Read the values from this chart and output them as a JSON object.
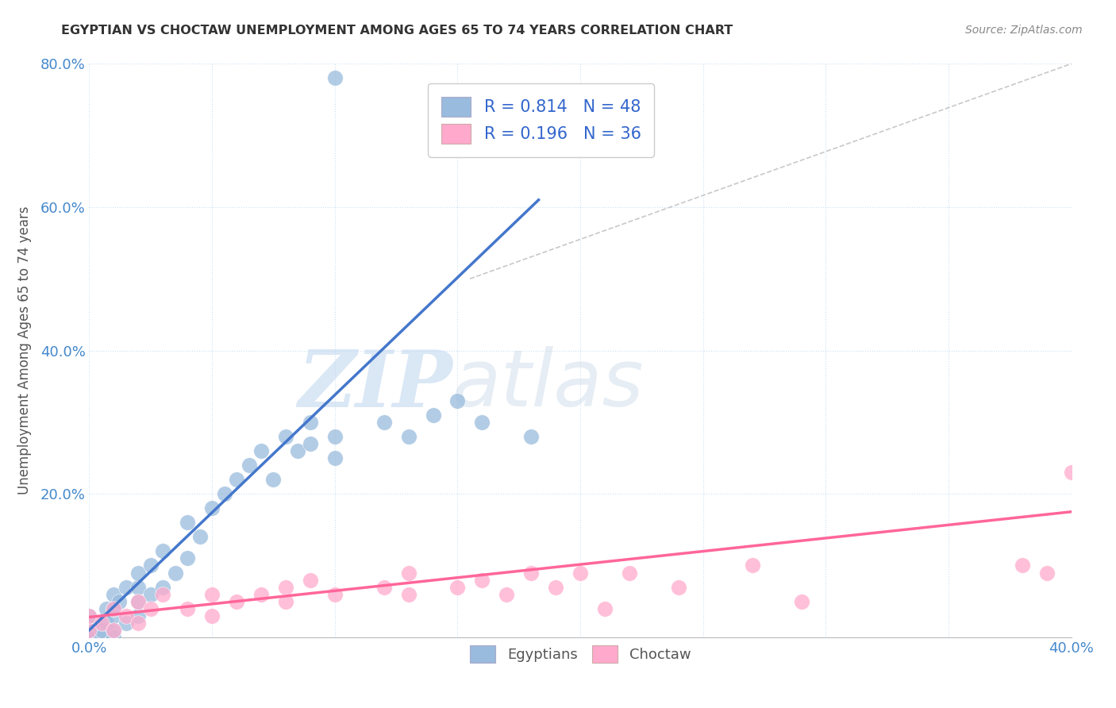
{
  "title": "EGYPTIAN VS CHOCTAW UNEMPLOYMENT AMONG AGES 65 TO 74 YEARS CORRELATION CHART",
  "source": "Source: ZipAtlas.com",
  "ylabel": "Unemployment Among Ages 65 to 74 years",
  "xlim": [
    0.0,
    0.4
  ],
  "ylim": [
    0.0,
    0.8
  ],
  "yticks": [
    0.0,
    0.2,
    0.4,
    0.6,
    0.8
  ],
  "ytick_labels": [
    "",
    "20.0%",
    "40.0%",
    "60.0%",
    "80.0%"
  ],
  "xtick_labels_show": [
    0.0,
    0.4
  ],
  "color_egyptian": "#99BBDD",
  "color_choctaw": "#FFAACC",
  "color_line_egyptian": "#4477CC",
  "color_line_choctaw": "#FF6699",
  "color_ref_line": "#BBBBBB",
  "watermark_zip": "ZIP",
  "watermark_atlas": "atlas",
  "background_color": "#FFFFFF",
  "eg_line_x0": 0.0,
  "eg_line_y0": 0.01,
  "eg_line_x1": 0.183,
  "eg_line_y1": 0.61,
  "ch_line_x0": 0.0,
  "ch_line_y0": 0.028,
  "ch_line_x1": 0.4,
  "ch_line_y1": 0.175,
  "ref_line_x0": 0.155,
  "ref_line_y0": 0.5,
  "ref_line_x1": 0.4,
  "ref_line_y1": 0.8,
  "egyptian_x": [
    0.0,
    0.0,
    0.0,
    0.0,
    0.0,
    0.005,
    0.005,
    0.007,
    0.007,
    0.01,
    0.01,
    0.01,
    0.01,
    0.01,
    0.012,
    0.015,
    0.015,
    0.02,
    0.02,
    0.02,
    0.02,
    0.025,
    0.025,
    0.03,
    0.03,
    0.035,
    0.04,
    0.04,
    0.045,
    0.05,
    0.055,
    0.06,
    0.065,
    0.07,
    0.075,
    0.08,
    0.085,
    0.09,
    0.09,
    0.1,
    0.1,
    0.12,
    0.13,
    0.14,
    0.15,
    0.16,
    0.18,
    0.1
  ],
  "egyptian_y": [
    0.0,
    0.005,
    0.01,
    0.02,
    0.03,
    0.0,
    0.01,
    0.02,
    0.04,
    0.0,
    0.01,
    0.03,
    0.04,
    0.06,
    0.05,
    0.02,
    0.07,
    0.03,
    0.05,
    0.07,
    0.09,
    0.06,
    0.1,
    0.07,
    0.12,
    0.09,
    0.11,
    0.16,
    0.14,
    0.18,
    0.2,
    0.22,
    0.24,
    0.26,
    0.22,
    0.28,
    0.26,
    0.27,
    0.3,
    0.25,
    0.28,
    0.3,
    0.28,
    0.31,
    0.33,
    0.3,
    0.28,
    0.78
  ],
  "choctaw_x": [
    0.0,
    0.0,
    0.005,
    0.01,
    0.01,
    0.015,
    0.02,
    0.02,
    0.025,
    0.03,
    0.04,
    0.05,
    0.05,
    0.06,
    0.07,
    0.08,
    0.08,
    0.09,
    0.1,
    0.12,
    0.13,
    0.13,
    0.15,
    0.16,
    0.17,
    0.18,
    0.19,
    0.2,
    0.21,
    0.22,
    0.24,
    0.27,
    0.29,
    0.38,
    0.39,
    0.4
  ],
  "choctaw_y": [
    0.01,
    0.03,
    0.02,
    0.01,
    0.04,
    0.03,
    0.02,
    0.05,
    0.04,
    0.06,
    0.04,
    0.03,
    0.06,
    0.05,
    0.06,
    0.07,
    0.05,
    0.08,
    0.06,
    0.07,
    0.06,
    0.09,
    0.07,
    0.08,
    0.06,
    0.09,
    0.07,
    0.09,
    0.04,
    0.09,
    0.07,
    0.1,
    0.05,
    0.1,
    0.09,
    0.23
  ]
}
